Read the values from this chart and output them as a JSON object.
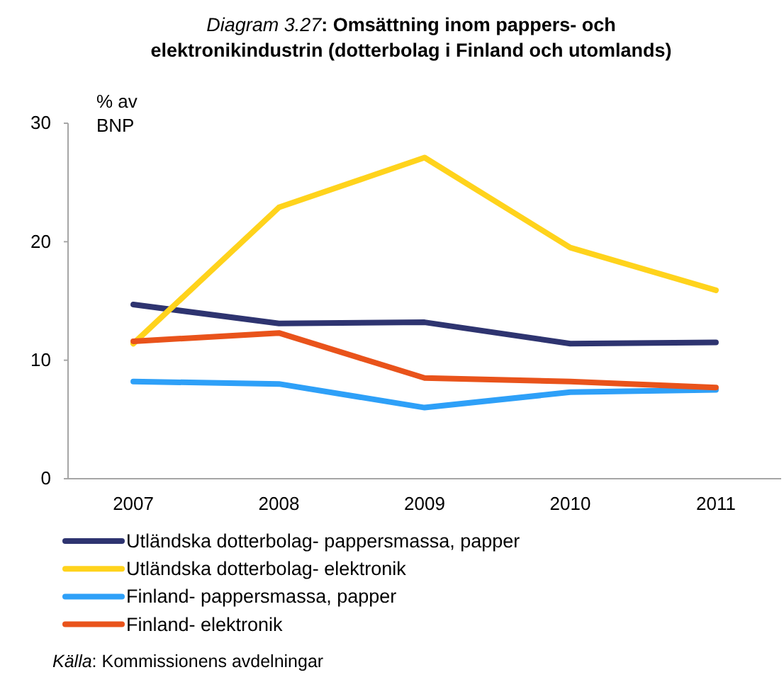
{
  "chart_data": {
    "type": "line",
    "title": "Diagram 3.27: Omsättning inom pappers- och elektronikindustrin (dotterbolag i Finland och utomlands)",
    "ylabel": "% av BNP",
    "categories": [
      "2007",
      "2008",
      "2009",
      "2010",
      "2011"
    ],
    "series": [
      {
        "name": "Utländska dotterbolag- pappersmassa, papper",
        "color": "#2e3470",
        "values": [
          14.7,
          13.1,
          13.2,
          11.4,
          11.5
        ]
      },
      {
        "name": "Utländska dotterbolag- elektronik",
        "color": "#ffd31c",
        "values": [
          11.4,
          22.9,
          27.1,
          19.5,
          15.9
        ]
      },
      {
        "name": "Finland- pappersmassa, papper",
        "color": "#2ea0f8",
        "values": [
          8.2,
          8.0,
          6.0,
          7.3,
          7.5
        ]
      },
      {
        "name": "Finland- elektronik",
        "color": "#e9531b",
        "values": [
          11.6,
          12.3,
          8.5,
          8.2,
          7.7
        ]
      }
    ],
    "ylim": [
      0,
      30
    ],
    "yticks": [
      0,
      10,
      20,
      30
    ],
    "legend": "bottom",
    "line_style": "solid",
    "annotations": [
      "Källa: Kommissionens avdelningar"
    ]
  }
}
